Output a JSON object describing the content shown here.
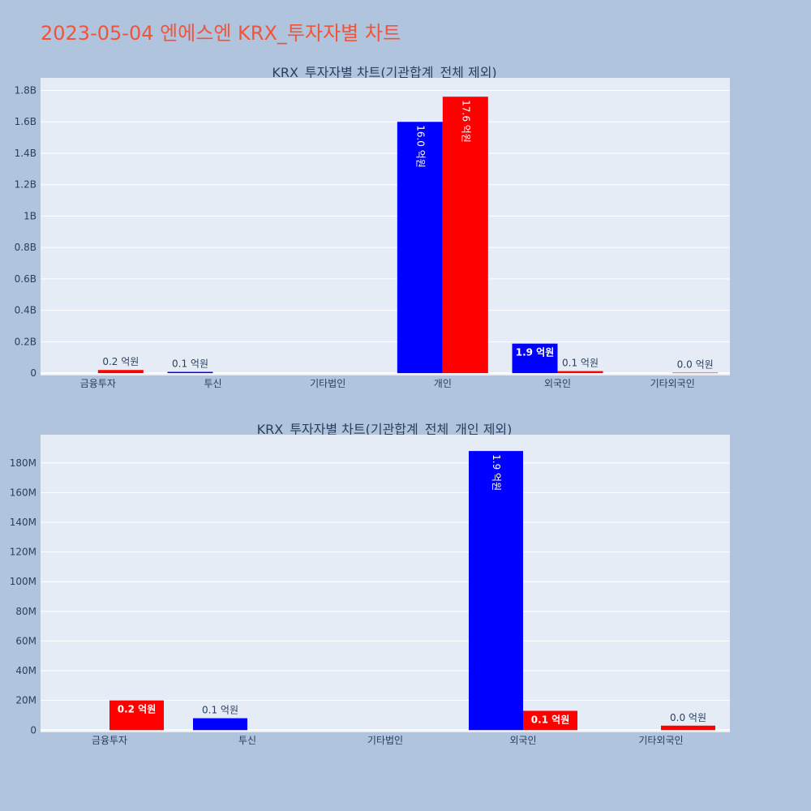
{
  "page": {
    "title": "2023-05-04 엔에스엔 KRX_투자자별 차트",
    "title_color": "#ef553b",
    "background": "#b0c4de",
    "plot_background": "#e5ecf6"
  },
  "chart_data": [
    {
      "type": "bar",
      "title": "KRX_투자자별 차트(기관합계_전체 제외)",
      "categories": [
        "금융투자",
        "투신",
        "기타법인",
        "개인",
        "외국인",
        "기타외국인"
      ],
      "series": [
        {
          "color": "#0000ff",
          "values": [
            null,
            8000000,
            null,
            1600000000,
            188000000,
            null
          ],
          "labels": [
            "",
            "0.1 억원",
            "",
            "16.0 억원",
            "1.9 억원",
            ""
          ]
        },
        {
          "color": "#ff0000",
          "values": [
            20000000,
            null,
            null,
            1760000000,
            13000000,
            3000000
          ],
          "labels": [
            "0.2 억원",
            "",
            "",
            "17.6 억원",
            "0.1 억원",
            "0.0 억원"
          ]
        }
      ],
      "y_ticks": [
        "0",
        "0.2B",
        "0.4B",
        "0.6B",
        "0.8B",
        "1B",
        "1.2B",
        "1.4B",
        "1.6B",
        "1.8B"
      ],
      "y_tick_values": [
        0,
        200000000,
        400000000,
        600000000,
        800000000,
        1000000000,
        1200000000,
        1400000000,
        1600000000,
        1800000000
      ],
      "ylim": [
        -15000000,
        1880000000
      ],
      "grid": true
    },
    {
      "type": "bar",
      "title": "KRX_투자자별 차트(기관합계_전체_개인 제외)",
      "categories": [
        "금융투자",
        "투신",
        "기타법인",
        "외국인",
        "기타외국인"
      ],
      "series": [
        {
          "color": "#0000ff",
          "values": [
            null,
            8000000,
            null,
            188000000,
            null
          ],
          "labels": [
            "",
            "0.1 억원",
            "",
            "1.9 억원",
            ""
          ]
        },
        {
          "color": "#ff0000",
          "values": [
            20000000,
            null,
            null,
            13000000,
            3000000
          ],
          "labels": [
            "0.2 억원",
            "",
            "",
            "0.1 억원",
            "0.0 억원"
          ]
        }
      ],
      "y_ticks": [
        "0",
        "20M",
        "40M",
        "60M",
        "80M",
        "100M",
        "120M",
        "140M",
        "160M",
        "180M"
      ],
      "y_tick_values": [
        0,
        20000000,
        40000000,
        60000000,
        80000000,
        100000000,
        120000000,
        140000000,
        160000000,
        180000000
      ],
      "ylim": [
        -1500000,
        199000000
      ],
      "grid": true
    }
  ]
}
